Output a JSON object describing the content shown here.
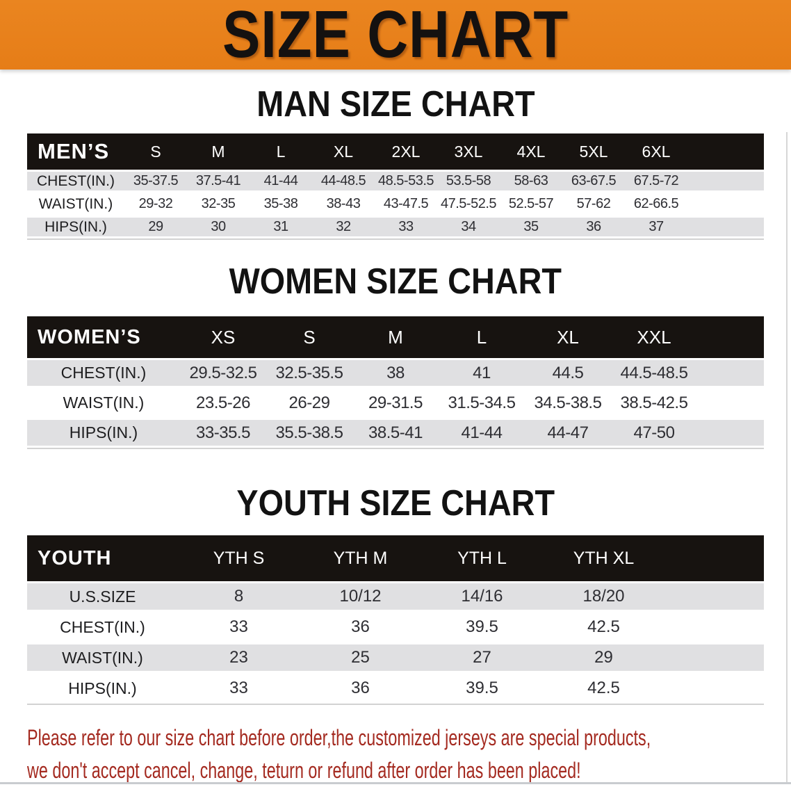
{
  "banner": {
    "title": "SIZE CHART",
    "bg_color": "#e8811e",
    "text_color": "#141110"
  },
  "colors": {
    "header_band": "#171310",
    "row_gray": "#e0e0e2",
    "note_red": "#a42a20"
  },
  "sections": {
    "men": {
      "title": "MAN SIZE CHART",
      "header": [
        "MEN’S",
        "S",
        "M",
        "L",
        "XL",
        "2XL",
        "3XL",
        "4XL",
        "5XL",
        "6XL"
      ],
      "rows": [
        {
          "label": "CHEST(IN.)",
          "cells": [
            "35-37.5",
            "37.5-41",
            "41-44",
            "44-48.5",
            "48.5-53.5",
            "53.5-58",
            "58-63",
            "63-67.5",
            "67.5-72"
          ]
        },
        {
          "label": "WAIST(IN.)",
          "cells": [
            "29-32",
            "32-35",
            "35-38",
            "38-43",
            "43-47.5",
            "47.5-52.5",
            "52.5-57",
            "57-62",
            "62-66.5"
          ]
        },
        {
          "label": "HIPS(IN.)",
          "cells": [
            "29",
            "30",
            "31",
            "32",
            "33",
            "34",
            "35",
            "36",
            "37"
          ]
        }
      ]
    },
    "women": {
      "title": "WOMEN SIZE CHART",
      "header": [
        "WOMEN’S",
        "XS",
        "S",
        "M",
        "L",
        "XL",
        "XXL"
      ],
      "rows": [
        {
          "label": "CHEST(IN.)",
          "cells": [
            "29.5-32.5",
            "32.5-35.5",
            "38",
            "41",
            "44.5",
            "44.5-48.5"
          ]
        },
        {
          "label": "WAIST(IN.)",
          "cells": [
            "23.5-26",
            "26-29",
            "29-31.5",
            "31.5-34.5",
            "34.5-38.5",
            "38.5-42.5"
          ]
        },
        {
          "label": "HIPS(IN.)",
          "cells": [
            "33-35.5",
            "35.5-38.5",
            "38.5-41",
            "41-44",
            "44-47",
            "47-50"
          ]
        }
      ]
    },
    "youth": {
      "title": "YOUTH SIZE CHART",
      "header": [
        "YOUTH",
        "YTH S",
        "YTH M",
        "YTH L",
        "YTH XL"
      ],
      "rows": [
        {
          "label": "U.S.SIZE",
          "cells": [
            "8",
            "10/12",
            "14/16",
            "18/20"
          ]
        },
        {
          "label": "CHEST(IN.)",
          "cells": [
            "33",
            "36",
            "39.5",
            "42.5"
          ]
        },
        {
          "label": "WAIST(IN.)",
          "cells": [
            "23",
            "25",
            "27",
            "29"
          ]
        },
        {
          "label": "HIPS(IN.)",
          "cells": [
            "33",
            "36",
            "39.5",
            "42.5"
          ]
        }
      ]
    }
  },
  "note": {
    "lines": [
      "Please refer to our size chart before order,the customized jerseys are special products,",
      "we don't accept cancel, change, teturn or refund after order has been placed!"
    ]
  }
}
